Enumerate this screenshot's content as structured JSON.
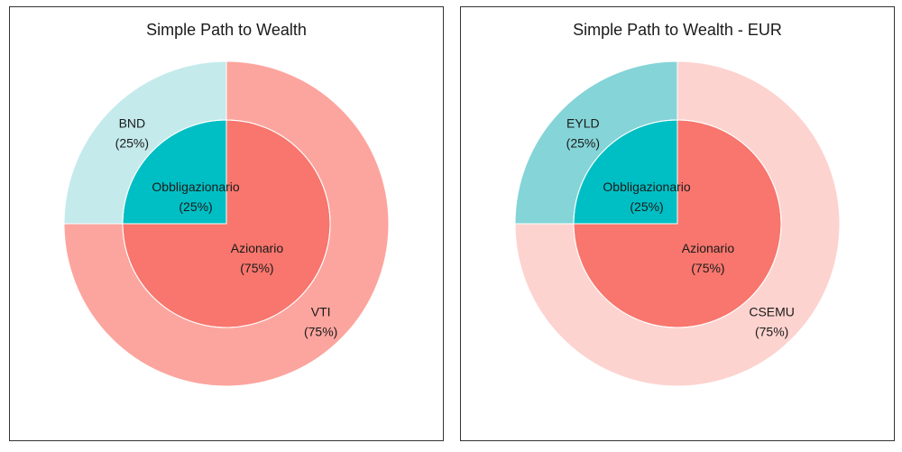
{
  "chart_data": [
    {
      "type": "pie",
      "title": "Simple Path to Wealth",
      "inner": [
        {
          "label": "Obbligazionario",
          "value": 25,
          "value_text": "(25%)",
          "color": "#00BFC4"
        },
        {
          "label": "Azionario",
          "value": 75,
          "value_text": "(75%)",
          "color": "#F8766D"
        }
      ],
      "outer": [
        {
          "label": "BND",
          "value": 25,
          "value_text": "(25%)",
          "color": "#C4EAEC"
        },
        {
          "label": "VTI",
          "value": 75,
          "value_text": "(75%)",
          "color": "#FCA59E"
        }
      ]
    },
    {
      "type": "pie",
      "title": "Simple Path to Wealth - EUR",
      "inner": [
        {
          "label": "Obbligazionario",
          "value": 25,
          "value_text": "(25%)",
          "color": "#00BFC4"
        },
        {
          "label": "Azionario",
          "value": 75,
          "value_text": "(75%)",
          "color": "#F8766D"
        }
      ],
      "outer": [
        {
          "label": "EYLD",
          "value": 25,
          "value_text": "(25%)",
          "color": "#85D4D7"
        },
        {
          "label": "CSEMU",
          "value": 75,
          "value_text": "(75%)",
          "color": "#FDD3CF"
        }
      ]
    }
  ]
}
